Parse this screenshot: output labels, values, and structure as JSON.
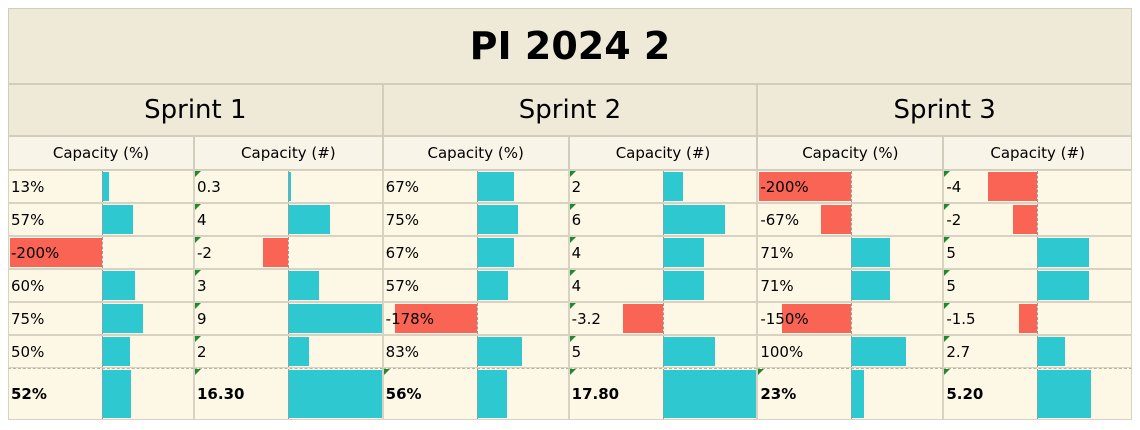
{
  "title": "PI 2024 2",
  "colors": {
    "positive_bar": "#2ec8d0",
    "negative_bar": "#fa6454",
    "header_bg": "#efe9d8",
    "cell_bg": "#fdf8e6"
  },
  "sprints": [
    {
      "name": "Sprint 1",
      "columns": [
        {
          "header": "Capacity (%)",
          "rows": [
            {
              "text": "13%",
              "value": 13
            },
            {
              "text": "57%",
              "value": 57
            },
            {
              "text": "-200%",
              "value": -200
            },
            {
              "text": "60%",
              "value": 60
            },
            {
              "text": "75%",
              "value": 75
            },
            {
              "text": "50%",
              "value": 50
            }
          ],
          "total": {
            "text": "52%",
            "value": 52
          }
        },
        {
          "header": "Capacity (#)",
          "rows": [
            {
              "text": "0.3",
              "value": 0.3
            },
            {
              "text": "4",
              "value": 4
            },
            {
              "text": "-2",
              "value": -2
            },
            {
              "text": "3",
              "value": 3
            },
            {
              "text": "9",
              "value": 9
            },
            {
              "text": "2",
              "value": 2
            }
          ],
          "total": {
            "text": "16.30",
            "value": 16.3
          }
        }
      ]
    },
    {
      "name": "Sprint 2",
      "columns": [
        {
          "header": "Capacity (%)",
          "rows": [
            {
              "text": "67%",
              "value": 67
            },
            {
              "text": "75%",
              "value": 75
            },
            {
              "text": "67%",
              "value": 67
            },
            {
              "text": "57%",
              "value": 57
            },
            {
              "text": "-178%",
              "value": -178
            },
            {
              "text": "83%",
              "value": 83
            }
          ],
          "total": {
            "text": "56%",
            "value": 56
          }
        },
        {
          "header": "Capacity (#)",
          "rows": [
            {
              "text": "2",
              "value": 2
            },
            {
              "text": "6",
              "value": 6
            },
            {
              "text": "4",
              "value": 4
            },
            {
              "text": "4",
              "value": 4
            },
            {
              "text": "-3.2",
              "value": -3.2
            },
            {
              "text": "5",
              "value": 5
            }
          ],
          "total": {
            "text": "17.80",
            "value": 17.8
          }
        }
      ]
    },
    {
      "name": "Sprint 3",
      "columns": [
        {
          "header": "Capacity (%)",
          "rows": [
            {
              "text": "-200%",
              "value": -200
            },
            {
              "text": "-67%",
              "value": -67
            },
            {
              "text": "71%",
              "value": 71
            },
            {
              "text": "71%",
              "value": 71
            },
            {
              "text": "-150%",
              "value": -150
            },
            {
              "text": "100%",
              "value": 100
            }
          ],
          "total": {
            "text": "23%",
            "value": 23
          }
        },
        {
          "header": "Capacity (#)",
          "rows": [
            {
              "text": "-4",
              "value": -4
            },
            {
              "text": "-2",
              "value": -2
            },
            {
              "text": "5",
              "value": 5
            },
            {
              "text": "5",
              "value": 5
            },
            {
              "text": "-1.5",
              "value": -1.5
            },
            {
              "text": "2.7",
              "value": 2.7
            }
          ],
          "total": {
            "text": "5.20",
            "value": 5.2
          }
        }
      ]
    }
  ]
}
